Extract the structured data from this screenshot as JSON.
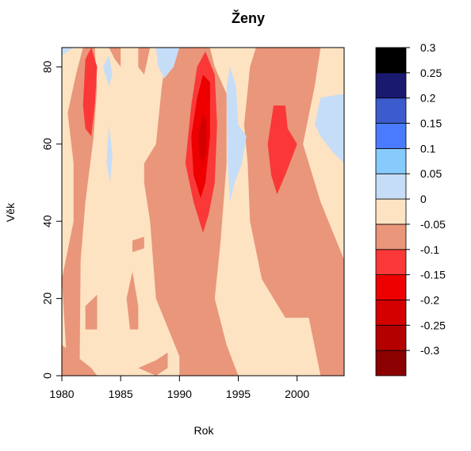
{
  "chart_data": {
    "type": "heatmap",
    "title": "Ženy",
    "xlabel": "Rok",
    "ylabel": "Věk",
    "xlim": [
      1980,
      2004
    ],
    "ylim": [
      0,
      85
    ],
    "x_ticks": [
      "1980",
      "1985",
      "1990",
      "1995",
      "2000"
    ],
    "y_ticks": [
      "0",
      "20",
      "40",
      "60",
      "80"
    ],
    "legend": {
      "placement": "right",
      "levels": [
        {
          "from": -0.3,
          "to": -0.25,
          "color": "#8b0000"
        },
        {
          "from": -0.25,
          "to": -0.2,
          "color": "#b50000"
        },
        {
          "from": -0.2,
          "to": -0.15,
          "color": "#d40000"
        },
        {
          "from": -0.15,
          "to": -0.1,
          "color": "#ee0000"
        },
        {
          "from": -0.1,
          "to": -0.05,
          "color": "#fa3838"
        },
        {
          "from": -0.05,
          "to": 0.0,
          "color": "#e9967a"
        },
        {
          "from": 0.0,
          "to": 0.05,
          "color": "#fde3c2"
        },
        {
          "from": 0.05,
          "to": 0.1,
          "color": "#c6ddf7"
        },
        {
          "from": 0.1,
          "to": 0.15,
          "color": "#86cbfb"
        },
        {
          "from": 0.15,
          "to": 0.2,
          "color": "#4a7bfe"
        },
        {
          "from": 0.2,
          "to": 0.25,
          "color": "#3c5bcc"
        },
        {
          "from": 0.25,
          "to": 0.3,
          "color": "#191970"
        },
        {
          "from": 0.3,
          "to": 0.35,
          "color": "#000000"
        }
      ],
      "tick_labels": [
        "0.3",
        "0.25",
        "0.2",
        "0.15",
        "0.1",
        "0.05",
        "0",
        "-0.05",
        "-0.1",
        "-0.15",
        "-0.2",
        "-0.25",
        "-0.3"
      ]
    },
    "regions": [
      {
        "value": 0.025,
        "points": [
          [
            1980,
            0
          ],
          [
            2004,
            0
          ],
          [
            2004,
            85
          ],
          [
            1980,
            85
          ]
        ]
      },
      {
        "value": -0.025,
        "points": [
          [
            1980,
            0
          ],
          [
            1983,
            0
          ],
          [
            1982.5,
            2
          ],
          [
            1980,
            8
          ]
        ]
      },
      {
        "value": -0.025,
        "points": [
          [
            1980,
            25
          ],
          [
            1981,
            40
          ],
          [
            1981,
            55
          ],
          [
            1980.5,
            68
          ],
          [
            1981.2,
            78
          ],
          [
            1981.8,
            85
          ],
          [
            1982.8,
            85
          ],
          [
            1983,
            75
          ],
          [
            1982.7,
            62
          ],
          [
            1982,
            45
          ],
          [
            1981.6,
            30
          ],
          [
            1981.5,
            0
          ],
          [
            1980.5,
            0
          ]
        ]
      },
      {
        "value": -0.025,
        "points": [
          [
            1982,
            18
          ],
          [
            1983,
            21
          ],
          [
            1983,
            12
          ],
          [
            1982,
            12
          ]
        ]
      },
      {
        "value": -0.025,
        "points": [
          [
            1984,
            85
          ],
          [
            1985,
            85
          ],
          [
            1985,
            80
          ],
          [
            1984.5,
            82
          ]
        ]
      },
      {
        "value": -0.025,
        "points": [
          [
            1986.5,
            85
          ],
          [
            1987.5,
            85
          ],
          [
            1987,
            78
          ],
          [
            1986.5,
            80
          ]
        ]
      },
      {
        "value": -0.025,
        "points": [
          [
            1985.5,
            20
          ],
          [
            1986,
            27
          ],
          [
            1986.5,
            18
          ],
          [
            1986.5,
            12
          ],
          [
            1985.8,
            12
          ]
        ]
      },
      {
        "value": -0.025,
        "points": [
          [
            1986,
            35
          ],
          [
            1987,
            36
          ],
          [
            1987,
            33
          ],
          [
            1986,
            32
          ]
        ]
      },
      {
        "value": -0.025,
        "points": [
          [
            1986.5,
            2
          ],
          [
            1988,
            4
          ],
          [
            1989,
            6
          ],
          [
            1989,
            2
          ],
          [
            1988,
            0
          ]
        ]
      },
      {
        "value": -0.025,
        "points": [
          [
            1987,
            55
          ],
          [
            1988,
            60
          ],
          [
            1988.5,
            75
          ],
          [
            1989,
            85
          ],
          [
            1991.5,
            85
          ],
          [
            1992.5,
            86
          ],
          [
            1993,
            80
          ],
          [
            1994,
            73
          ],
          [
            1994,
            55
          ],
          [
            1993.5,
            35
          ],
          [
            1993,
            20
          ],
          [
            1994,
            8
          ],
          [
            1995,
            0
          ],
          [
            1990,
            0
          ],
          [
            1990,
            5
          ],
          [
            1988,
            20
          ],
          [
            1987.5,
            40
          ],
          [
            1987,
            50
          ]
        ]
      },
      {
        "value": -0.025,
        "points": [
          [
            1995.5,
            65
          ],
          [
            1996,
            80
          ],
          [
            1996.5,
            85
          ],
          [
            2002,
            85
          ],
          [
            2001.5,
            75
          ],
          [
            2000.5,
            60
          ],
          [
            2002,
            45
          ],
          [
            2004,
            30
          ],
          [
            2004,
            0
          ],
          [
            2002,
            0
          ],
          [
            2001,
            15
          ],
          [
            1999,
            15
          ],
          [
            1997,
            25
          ],
          [
            1996,
            40
          ],
          [
            1995.8,
            55
          ]
        ]
      },
      {
        "value": -0.075,
        "points": [
          [
            1981.8,
            70
          ],
          [
            1982,
            82
          ],
          [
            1982.5,
            85
          ],
          [
            1983,
            80
          ],
          [
            1982.8,
            70
          ],
          [
            1982.5,
            62
          ],
          [
            1982,
            64
          ]
        ]
      },
      {
        "value": -0.075,
        "points": [
          [
            1990.5,
            55
          ],
          [
            1991,
            70
          ],
          [
            1991.5,
            80
          ],
          [
            1992.2,
            84
          ],
          [
            1993,
            78
          ],
          [
            1993.2,
            65
          ],
          [
            1993,
            50
          ],
          [
            1992.5,
            42
          ],
          [
            1992,
            37
          ],
          [
            1991.2,
            45
          ]
        ]
      },
      {
        "value": -0.075,
        "points": [
          [
            1997.5,
            60
          ],
          [
            1998,
            70
          ],
          [
            1999,
            70
          ],
          [
            1999.2,
            64
          ],
          [
            2000,
            60
          ],
          [
            1999,
            52
          ],
          [
            1998.3,
            47
          ],
          [
            1997.8,
            52
          ]
        ]
      },
      {
        "value": -0.125,
        "points": [
          [
            1991,
            62
          ],
          [
            1991.5,
            72
          ],
          [
            1992,
            78
          ],
          [
            1992.6,
            76
          ],
          [
            1992.6,
            62
          ],
          [
            1992.2,
            50
          ],
          [
            1991.8,
            46
          ],
          [
            1991.2,
            52
          ]
        ]
      },
      {
        "value": -0.175,
        "points": [
          [
            1991.6,
            62
          ],
          [
            1992,
            68
          ],
          [
            1992.3,
            66
          ],
          [
            1992.3,
            58
          ],
          [
            1992,
            55
          ],
          [
            1991.7,
            57
          ]
        ]
      },
      {
        "value": 0.075,
        "points": [
          [
            1980,
            83
          ],
          [
            1981,
            85
          ],
          [
            1980,
            85
          ]
        ]
      },
      {
        "value": 0.075,
        "points": [
          [
            1983.5,
            80
          ],
          [
            1984,
            83
          ],
          [
            1984.3,
            78
          ],
          [
            1984,
            75
          ]
        ]
      },
      {
        "value": 0.075,
        "points": [
          [
            1983.8,
            55
          ],
          [
            1984,
            65
          ],
          [
            1984.3,
            57
          ],
          [
            1984.1,
            50
          ]
        ]
      },
      {
        "value": 0.075,
        "points": [
          [
            1988,
            85
          ],
          [
            1990,
            85
          ],
          [
            1989.5,
            80
          ],
          [
            1988.7,
            77
          ],
          [
            1988.2,
            80
          ]
        ]
      },
      {
        "value": 0.075,
        "points": [
          [
            1994,
            75
          ],
          [
            1994.3,
            80
          ],
          [
            1994.8,
            75
          ],
          [
            1995,
            65
          ],
          [
            1995.7,
            62
          ],
          [
            1995.3,
            55
          ],
          [
            1994.7,
            50
          ],
          [
            1994.3,
            45
          ],
          [
            1994.1,
            55
          ]
        ]
      },
      {
        "value": 0.075,
        "points": [
          [
            2001.5,
            65
          ],
          [
            2002,
            72
          ],
          [
            2004,
            73
          ],
          [
            2004,
            55
          ],
          [
            2003,
            58
          ],
          [
            2002,
            62
          ]
        ]
      }
    ]
  }
}
